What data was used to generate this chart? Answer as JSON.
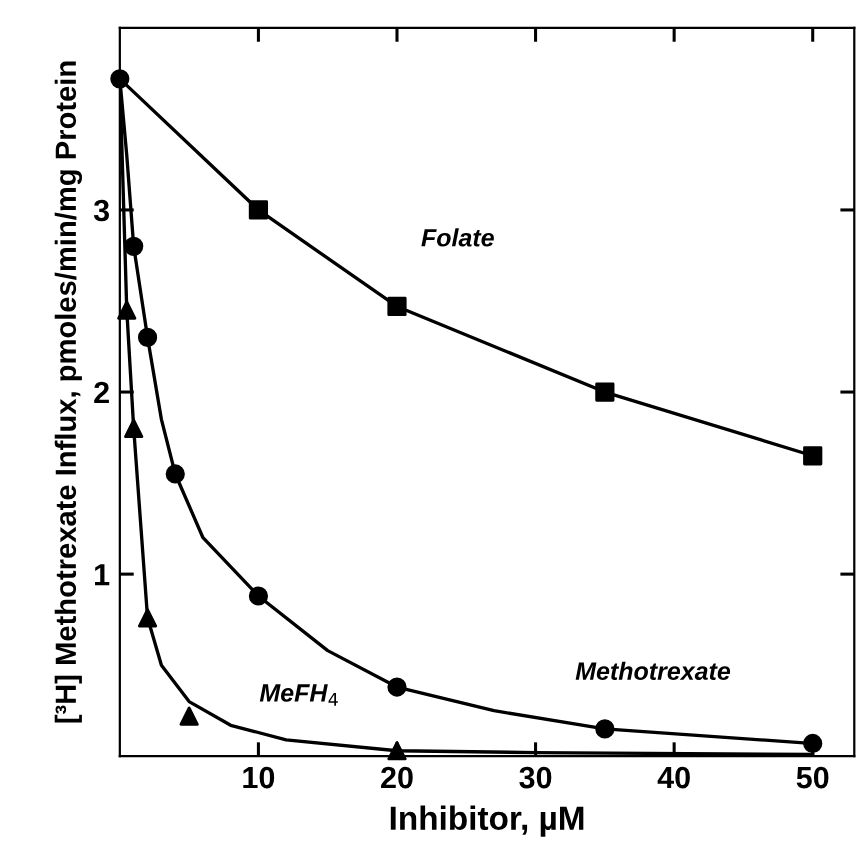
{
  "chart_data": {
    "type": "line",
    "xlabel": "Inhibitor, µM",
    "ylabel": "[³H] Methotrexate Influx, pmoles/min/mg Protein",
    "xlim": [
      0,
      53
    ],
    "ylim": [
      0,
      4.0
    ],
    "xticks": [
      10,
      20,
      30,
      40,
      50
    ],
    "yticks": [
      1,
      2,
      3
    ],
    "grid": false,
    "legend": false,
    "line_style": "solid",
    "series": [
      {
        "marker": "none",
        "color": "#000000",
        "x": [
          0,
          10,
          20,
          35,
          50
        ],
        "values": [
          3.72,
          3.0,
          2.47,
          2.0,
          1.65
        ]
      },
      {
        "type": "scatter",
        "marker": "square",
        "color": "#000000",
        "x": [
          10,
          20,
          35,
          50
        ],
        "values": [
          3.0,
          2.47,
          2.0,
          1.65
        ]
      },
      {
        "marker": "none",
        "color": "#000000",
        "x": [
          0,
          0.5,
          1,
          2,
          3,
          4,
          6,
          10,
          15,
          20,
          27,
          35,
          50
        ],
        "values": [
          3.72,
          3.3,
          2.8,
          2.3,
          1.85,
          1.55,
          1.2,
          0.88,
          0.58,
          0.38,
          0.25,
          0.15,
          0.07
        ]
      },
      {
        "type": "scatter",
        "marker": "circle",
        "color": "#000000",
        "x": [
          0,
          1,
          2,
          4,
          10,
          20,
          35,
          50
        ],
        "values": [
          3.72,
          2.8,
          2.3,
          1.55,
          0.88,
          0.38,
          0.15,
          0.07
        ]
      },
      {
        "marker": "none",
        "color": "#000000",
        "x": [
          0,
          0.5,
          1,
          2,
          3,
          5,
          8,
          12,
          20,
          30,
          50
        ],
        "values": [
          3.72,
          2.45,
          1.8,
          0.76,
          0.5,
          0.3,
          0.17,
          0.09,
          0.03,
          0.02,
          0.01
        ]
      },
      {
        "type": "scatter",
        "marker": "triangle",
        "color": "#000000",
        "x": [
          0.5,
          1,
          2,
          5,
          20
        ],
        "values": [
          2.45,
          1.8,
          0.76,
          0.22,
          0.03
        ]
      }
    ],
    "annotations": [
      "Folate",
      "Methotrexate",
      "MeFH$_{4}$"
    ]
  }
}
